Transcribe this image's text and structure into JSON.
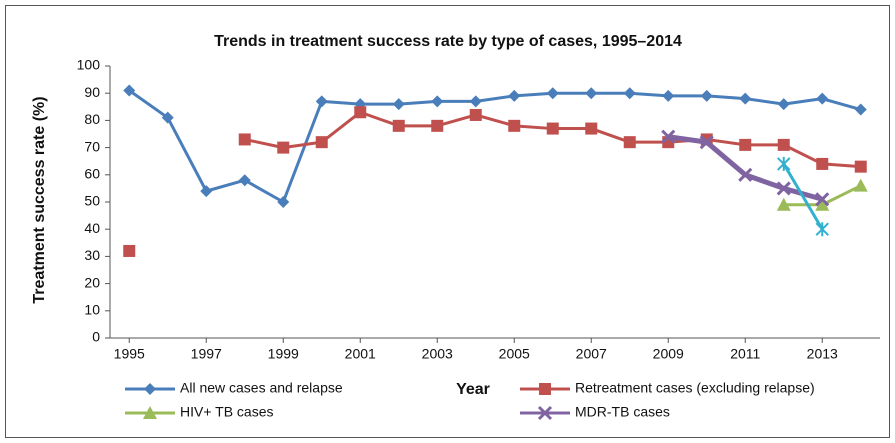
{
  "chart_data": {
    "type": "line",
    "title": "Trends in treatment success rate by type of cases, 1995–2014",
    "x_label": "Year",
    "y_label": "Treatment success rate (%)",
    "x": [
      1995,
      1996,
      1997,
      1998,
      1999,
      2000,
      2001,
      2002,
      2003,
      2004,
      2005,
      2006,
      2007,
      2008,
      2009,
      2010,
      2011,
      2012,
      2013,
      2014
    ],
    "xlim": [
      1994.5,
      2014.5
    ],
    "xticks": [
      1995,
      1997,
      1999,
      2001,
      2003,
      2005,
      2007,
      2009,
      2011,
      2013
    ],
    "ylim": [
      0,
      100
    ],
    "yticks": [
      0,
      10,
      20,
      30,
      40,
      50,
      60,
      70,
      80,
      90,
      100
    ],
    "legend": "bottom",
    "series": [
      {
        "name": "All new cases and relapse",
        "color": "#4a7ebb",
        "marker": "diamond",
        "values": [
          91,
          81,
          54,
          58,
          50,
          87,
          86,
          86,
          87,
          87,
          89,
          90,
          90,
          90,
          89,
          89,
          88,
          86,
          88,
          84
        ]
      },
      {
        "name": "Retreatment cases (excluding relapse)",
        "color": "#c0504d",
        "marker": "square",
        "values": [
          32,
          null,
          null,
          73,
          70,
          72,
          83,
          78,
          78,
          82,
          78,
          77,
          77,
          72,
          72,
          73,
          71,
          71,
          64,
          63
        ]
      },
      {
        "name": "HIV+ TB cases",
        "color": "#9bbb59",
        "marker": "triangle",
        "values": [
          null,
          null,
          null,
          null,
          null,
          null,
          null,
          null,
          null,
          null,
          null,
          null,
          null,
          null,
          null,
          null,
          null,
          49,
          49,
          56
        ]
      },
      {
        "name": "MDR-TB cases",
        "color": "#8064a2",
        "marker": "x",
        "values": [
          null,
          null,
          null,
          null,
          null,
          null,
          null,
          null,
          null,
          null,
          null,
          null,
          null,
          null,
          74,
          72,
          60,
          55,
          51,
          null
        ]
      },
      {
        "color": "#31b0cf",
        "marker": "star",
        "values": [
          null,
          null,
          null,
          null,
          null,
          null,
          null,
          null,
          null,
          null,
          null,
          null,
          null,
          null,
          null,
          null,
          null,
          64,
          40,
          null
        ]
      }
    ]
  }
}
